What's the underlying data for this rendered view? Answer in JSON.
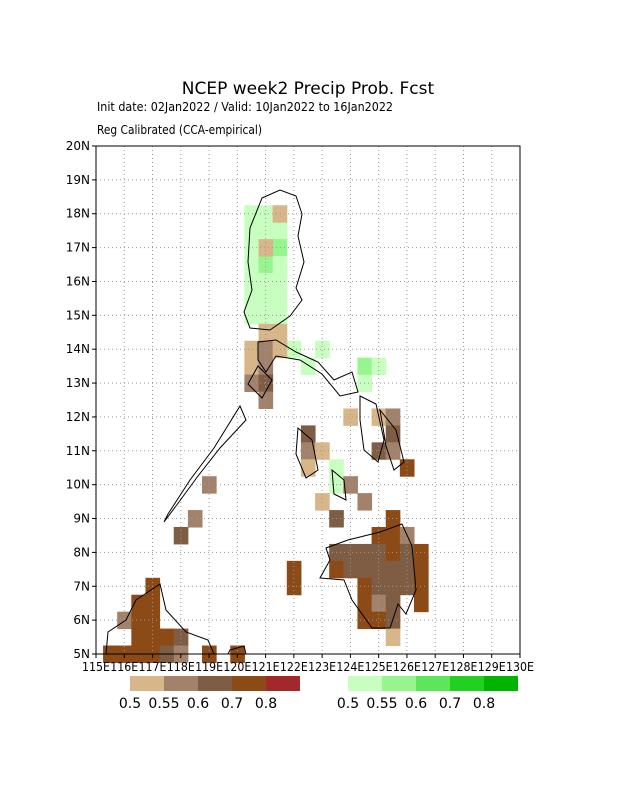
{
  "map": {
    "title": "NCEP week2 Precip Prob. Fcst",
    "subtitle_lines": [
      "Init date: 02Jan2022 / Valid: 10Jan2022 to 16Jan2022",
      "Reg Calibrated (CCA-empirical)"
    ],
    "lon_range": [
      115,
      130
    ],
    "lat_range": [
      5,
      20
    ],
    "lon_ticks": [
      {
        "value": 115,
        "label": "115E"
      },
      {
        "value": 116,
        "label": "116E"
      },
      {
        "value": 117,
        "label": "117E"
      },
      {
        "value": 118,
        "label": "118E"
      },
      {
        "value": 119,
        "label": "119E"
      },
      {
        "value": 120,
        "label": "120E"
      },
      {
        "value": 121,
        "label": "121E"
      },
      {
        "value": 122,
        "label": "122E"
      },
      {
        "value": 123,
        "label": "123E"
      },
      {
        "value": 124,
        "label": "124E"
      },
      {
        "value": 125,
        "label": "125E"
      },
      {
        "value": 126,
        "label": "126E"
      },
      {
        "value": 127,
        "label": "127E"
      },
      {
        "value": 128,
        "label": "128E"
      },
      {
        "value": 129,
        "label": "129E"
      },
      {
        "value": 130,
        "label": "130E"
      }
    ],
    "lat_ticks": [
      {
        "value": 5,
        "label": "5N"
      },
      {
        "value": 6,
        "label": "6N"
      },
      {
        "value": 7,
        "label": "7N"
      },
      {
        "value": 8,
        "label": "8N"
      },
      {
        "value": 9,
        "label": "9N"
      },
      {
        "value": 10,
        "label": "10N"
      },
      {
        "value": 11,
        "label": "11N"
      },
      {
        "value": 12,
        "label": "12N"
      },
      {
        "value": 13,
        "label": "13N"
      },
      {
        "value": 14,
        "label": "14N"
      },
      {
        "value": 15,
        "label": "15N"
      },
      {
        "value": 16,
        "label": "16N"
      },
      {
        "value": 17,
        "label": "17N"
      },
      {
        "value": 18,
        "label": "18N"
      },
      {
        "value": 19,
        "label": "19N"
      },
      {
        "value": 20,
        "label": "20N"
      }
    ],
    "dry_legend": {
      "values": [
        0.5,
        0.55,
        0.6,
        0.7,
        0.8
      ],
      "colors": [
        "#d7b689",
        "#a2826a",
        "#7f5d45",
        "#8b4a16",
        "#a3282b"
      ]
    },
    "wet_legend": {
      "values": [
        0.5,
        0.55,
        0.6,
        0.7,
        0.8
      ],
      "colors": [
        "#c8ffc0",
        "#96f58e",
        "#5ee65a",
        "#22d022",
        "#00b400"
      ]
    },
    "cell_size": 0.5,
    "wet_cells": [
      [
        120.5,
        18.0,
        0.5
      ],
      [
        121.0,
        18.0,
        0.5
      ],
      [
        120.5,
        17.5,
        0.5
      ],
      [
        121.0,
        17.5,
        0.5
      ],
      [
        121.5,
        17.5,
        0.5
      ],
      [
        120.5,
        17.0,
        0.5
      ],
      [
        121.5,
        17.0,
        0.55
      ],
      [
        120.5,
        16.5,
        0.5
      ],
      [
        121.0,
        16.5,
        0.55
      ],
      [
        121.5,
        16.5,
        0.5
      ],
      [
        120.5,
        16.0,
        0.5
      ],
      [
        121.0,
        16.0,
        0.5
      ],
      [
        121.5,
        16.0,
        0.5
      ],
      [
        120.5,
        15.5,
        0.5
      ],
      [
        121.0,
        15.5,
        0.5
      ],
      [
        121.5,
        15.5,
        0.5
      ],
      [
        120.5,
        15.0,
        0.5
      ],
      [
        121.0,
        15.0,
        0.5
      ],
      [
        121.5,
        15.0,
        0.5
      ],
      [
        122.0,
        14.0,
        0.5
      ],
      [
        122.5,
        13.5,
        0.5
      ],
      [
        123.0,
        14.0,
        0.5
      ],
      [
        124.5,
        13.5,
        0.55
      ],
      [
        125.0,
        13.5,
        0.5
      ],
      [
        124.5,
        13.0,
        0.5
      ],
      [
        123.5,
        10.5,
        0.5
      ],
      [
        123.5,
        10.0,
        0.5
      ]
    ],
    "dry_cells": [
      [
        121.5,
        18.0,
        0.5
      ],
      [
        121.0,
        17.0,
        0.5
      ],
      [
        121.0,
        14.5,
        0.5
      ],
      [
        121.5,
        14.5,
        0.5
      ],
      [
        120.5,
        14.0,
        0.5
      ],
      [
        121.0,
        14.0,
        0.55
      ],
      [
        121.5,
        14.0,
        0.5
      ],
      [
        120.5,
        13.5,
        0.5
      ],
      [
        121.0,
        13.5,
        0.55
      ],
      [
        120.5,
        13.0,
        0.55
      ],
      [
        121.0,
        13.0,
        0.6
      ],
      [
        121.0,
        12.5,
        0.55
      ],
      [
        124.0,
        12.0,
        0.5
      ],
      [
        125.0,
        12.0,
        0.5
      ],
      [
        125.5,
        12.0,
        0.55
      ],
      [
        122.5,
        11.5,
        0.6
      ],
      [
        125.5,
        11.5,
        0.6
      ],
      [
        122.5,
        11.0,
        0.55
      ],
      [
        123.0,
        11.0,
        0.5
      ],
      [
        125.0,
        11.0,
        0.6
      ],
      [
        125.5,
        11.0,
        0.55
      ],
      [
        122.5,
        10.5,
        0.5
      ],
      [
        126.0,
        10.5,
        0.7
      ],
      [
        124.0,
        10.0,
        0.55
      ],
      [
        119.0,
        10.0,
        0.55
      ],
      [
        123.0,
        9.5,
        0.5
      ],
      [
        124.5,
        9.5,
        0.55
      ],
      [
        123.5,
        9.0,
        0.6
      ],
      [
        125.5,
        9.0,
        0.7
      ],
      [
        118.5,
        9.0,
        0.55
      ],
      [
        118.0,
        8.5,
        0.6
      ],
      [
        125.0,
        8.5,
        0.7
      ],
      [
        125.5,
        8.5,
        0.7
      ],
      [
        126.0,
        8.5,
        0.55
      ],
      [
        123.5,
        8.0,
        0.6
      ],
      [
        124.0,
        8.0,
        0.6
      ],
      [
        124.5,
        8.0,
        0.6
      ],
      [
        125.0,
        8.0,
        0.6
      ],
      [
        125.5,
        8.0,
        0.7
      ],
      [
        126.0,
        8.0,
        0.6
      ],
      [
        126.5,
        8.0,
        0.7
      ],
      [
        122.0,
        7.5,
        0.7
      ],
      [
        123.5,
        7.5,
        0.7
      ],
      [
        124.0,
        7.5,
        0.6
      ],
      [
        124.5,
        7.5,
        0.6
      ],
      [
        125.0,
        7.5,
        0.6
      ],
      [
        125.5,
        7.5,
        0.6
      ],
      [
        126.0,
        7.5,
        0.6
      ],
      [
        126.5,
        7.5,
        0.7
      ],
      [
        122.0,
        7.0,
        0.7
      ],
      [
        124.5,
        7.0,
        0.7
      ],
      [
        125.0,
        7.0,
        0.6
      ],
      [
        125.5,
        7.0,
        0.6
      ],
      [
        126.0,
        7.0,
        0.6
      ],
      [
        126.5,
        7.0,
        0.7
      ],
      [
        124.5,
        6.5,
        0.7
      ],
      [
        125.0,
        6.5,
        0.55
      ],
      [
        125.5,
        6.5,
        0.6
      ],
      [
        126.5,
        6.5,
        0.7
      ],
      [
        124.5,
        6.0,
        0.7
      ],
      [
        125.0,
        6.0,
        0.7
      ],
      [
        125.5,
        6.0,
        0.6
      ],
      [
        125.5,
        5.5,
        0.5
      ],
      [
        117.0,
        7.0,
        0.7
      ],
      [
        116.5,
        6.5,
        0.7
      ],
      [
        117.0,
        6.5,
        0.7
      ],
      [
        116.0,
        6.0,
        0.55
      ],
      [
        116.5,
        6.0,
        0.7
      ],
      [
        117.0,
        6.0,
        0.7
      ],
      [
        116.5,
        5.5,
        0.7
      ],
      [
        117.0,
        5.5,
        0.7
      ],
      [
        117.5,
        5.5,
        0.7
      ],
      [
        118.0,
        5.5,
        0.6
      ],
      [
        115.5,
        5.0,
        0.7
      ],
      [
        116.0,
        5.0,
        0.7
      ],
      [
        116.5,
        5.0,
        0.7
      ],
      [
        117.0,
        5.0,
        0.7
      ],
      [
        117.5,
        5.0,
        0.6
      ],
      [
        118.0,
        5.0,
        0.55
      ],
      [
        119.0,
        5.0,
        0.7
      ],
      [
        120.0,
        5.0,
        0.7
      ]
    ]
  }
}
